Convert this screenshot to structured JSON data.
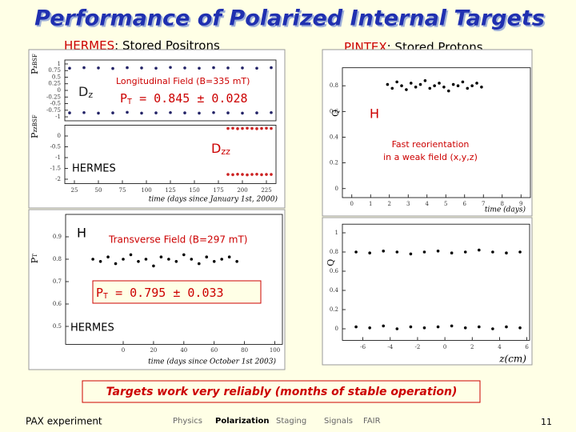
{
  "header": {
    "title": "Performance of Polarized Internal Targets",
    "left_heading": {
      "name": "HERMES",
      "rest": ": Stored Positrons"
    },
    "right_heading": {
      "name": "PINTEX",
      "rest": ": Stored Protons"
    }
  },
  "plots": [
    {
      "xlim": [
        15,
        235
      ],
      "xticks": [
        25,
        50,
        75,
        100,
        125,
        150,
        175,
        200,
        225
      ],
      "xlabel": "time (days since January 1st, 2000)",
      "annotations": {
        "field": "Longitudinal Field (B=335 mT)",
        "pt": [
          "P",
          "T",
          " = 0.845 ± 0.028"
        ],
        "dz": [
          "D",
          "z"
        ],
        "dzz": [
          "D",
          "zz"
        ],
        "label": "HERMES"
      },
      "panels": [
        {
          "ylim": [
            -1.15,
            1.15
          ],
          "yticks": [
            1,
            0.75,
            0.5,
            0.25,
            0,
            -0.25,
            -0.5,
            -0.75,
            -1
          ],
          "ylabel": [
            "P",
            "z",
            "BSF"
          ],
          "series": [
            {
              "color": "#222266",
              "x": [
                20,
                35,
                50,
                65,
                80,
                95,
                110,
                125,
                140,
                155,
                170,
                185,
                200,
                215,
                230
              ],
              "values": [
                0.84,
                0.86,
                0.85,
                0.83,
                0.86,
                0.85,
                0.84,
                0.87,
                0.85,
                0.84,
                0.86,
                0.85,
                0.85,
                0.84,
                0.86
              ]
            },
            {
              "color": "#222266",
              "x": [
                20,
                35,
                50,
                65,
                80,
                95,
                110,
                125,
                140,
                155,
                170,
                185,
                200,
                215,
                230
              ],
              "values": [
                -0.85,
                -0.84,
                -0.86,
                -0.85,
                -0.83,
                -0.86,
                -0.85,
                -0.84,
                -0.85,
                -0.86,
                -0.84,
                -0.85,
                -0.86,
                -0.85,
                -0.84
              ]
            }
          ]
        },
        {
          "ylim": [
            -2.2,
            0.5
          ],
          "yticks": [
            0,
            -0.5,
            -1,
            -1.5,
            -2
          ],
          "ylabel": [
            "P",
            "zz",
            "BSF"
          ],
          "series": [
            {
              "color": "#cc2222",
              "x": [
                185,
                190,
                195,
                200,
                205,
                210,
                215,
                220,
                225,
                230
              ],
              "values": [
                0.35,
                0.36,
                0.34,
                0.35,
                0.36,
                0.35,
                0.34,
                0.35,
                0.36,
                0.35
              ]
            },
            {
              "color": "#cc2222",
              "x": [
                185,
                190,
                195,
                200,
                205,
                210,
                215,
                220,
                225,
                230
              ],
              "values": [
                -1.78,
                -1.79,
                -1.77,
                -1.78,
                -1.8,
                -1.78,
                -1.77,
                -1.79,
                -1.78,
                -1.78
              ]
            }
          ]
        }
      ]
    },
    {
      "xlim": [
        -0.5,
        9.5
      ],
      "xticks": [
        0,
        1,
        2,
        3,
        4,
        5,
        6,
        7,
        8,
        9
      ],
      "xlabel": "time (days)",
      "annotations": {
        "h": "H",
        "note": [
          "Fast reorientation",
          "in a weak field (x,y,z)"
        ]
      },
      "panels": [
        {
          "ylim": [
            -0.07,
            0.94
          ],
          "yticks": [
            0,
            0.2,
            0.4,
            0.6,
            0.8
          ],
          "ylabel": [
            "Q"
          ],
          "series": [
            {
              "color": "#000000",
              "x": [
                1.9,
                2.15,
                2.4,
                2.65,
                2.9,
                3.15,
                3.4,
                3.65,
                3.9,
                4.15,
                4.4,
                4.65,
                4.9,
                5.15,
                5.4,
                5.65,
                5.9,
                6.15,
                6.4,
                6.65,
                6.9
              ],
              "values": [
                0.81,
                0.78,
                0.83,
                0.8,
                0.77,
                0.82,
                0.79,
                0.81,
                0.84,
                0.78,
                0.8,
                0.82,
                0.79,
                0.76,
                0.81,
                0.8,
                0.83,
                0.78,
                0.8,
                0.82,
                0.79
              ]
            }
          ]
        }
      ]
    },
    {
      "xlim": [
        -38,
        105
      ],
      "xticks": [
        0,
        20,
        40,
        60,
        80,
        100
      ],
      "xlabel": "time (days since October 1st 2003)",
      "annotations": {
        "h": "H",
        "field": "Transverse Field (B=297 mT)",
        "pt": [
          "P",
          "T",
          " = 0.795 ± 0.033"
        ],
        "label": "HERMES"
      },
      "panels": [
        {
          "ylim": [
            0.42,
            1.0
          ],
          "yticks": [
            0.9,
            0.8,
            0.7,
            0.6,
            0.5
          ],
          "ylabel": [
            "P",
            "T"
          ],
          "series": [
            {
              "color": "#000000",
              "x": [
                -20,
                -15,
                -10,
                -5,
                0,
                5,
                10,
                15,
                20,
                25,
                30,
                35,
                40,
                45,
                50,
                55,
                60,
                65,
                70,
                75
              ],
              "values": [
                0.8,
                0.79,
                0.81,
                0.78,
                0.8,
                0.82,
                0.79,
                0.8,
                0.77,
                0.81,
                0.8,
                0.79,
                0.82,
                0.8,
                0.78,
                0.81,
                0.79,
                0.8,
                0.81,
                0.79
              ]
            }
          ]
        }
      ]
    },
    {
      "xlim": [
        -7.5,
        6.2
      ],
      "xticks": [
        -6,
        -4,
        -2,
        0,
        2,
        4,
        6
      ],
      "xlabel": "z(cm)",
      "panels": [
        {
          "ylim": [
            -0.12,
            1.09
          ],
          "yticks": [
            0,
            0.2,
            0.4,
            0.6,
            0.8,
            1
          ],
          "ylabel": [
            "Q"
          ],
          "series": [
            {
              "color": "#000000",
              "x": [
                -6.5,
                -5.5,
                -4.5,
                -3.5,
                -2.5,
                -1.5,
                -0.5,
                0.5,
                1.5,
                2.5,
                3.5,
                4.5,
                5.5
              ],
              "values": [
                0.8,
                0.79,
                0.81,
                0.8,
                0.78,
                0.8,
                0.81,
                0.79,
                0.8,
                0.82,
                0.8,
                0.79,
                0.8
              ]
            },
            {
              "color": "#000000",
              "x": [
                -6.5,
                -5.5,
                -4.5,
                -3.5,
                -2.5,
                -1.5,
                -0.5,
                0.5,
                1.5,
                2.5,
                3.5,
                4.5,
                5.5
              ],
              "values": [
                0.02,
                0.01,
                0.03,
                0.0,
                0.02,
                0.01,
                0.02,
                0.03,
                0.01,
                0.02,
                0.0,
                0.02,
                0.01
              ]
            }
          ]
        }
      ]
    }
  ],
  "summary": "Targets work very reliably (months of stable operation)",
  "footer": {
    "left": "PAX experiment",
    "nav": [
      "Physics",
      "Polarization",
      "Staging",
      "Signals",
      "FAIR"
    ],
    "page": "11"
  }
}
